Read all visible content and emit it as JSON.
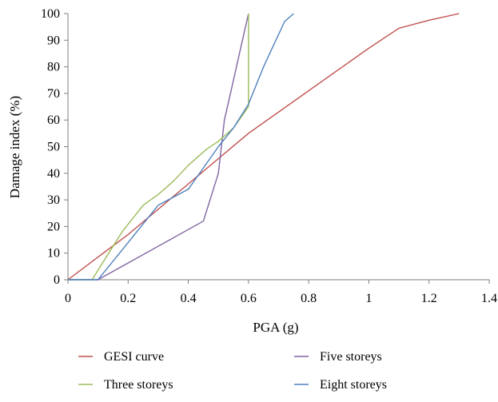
{
  "chart_data": {
    "type": "line",
    "title": "",
    "xlabel": "PGA (g)",
    "ylabel": "Damage index (%)",
    "xlim": [
      0,
      1.4
    ],
    "ylim": [
      0,
      100
    ],
    "xticks": [
      0,
      0.2,
      0.4,
      0.6,
      0.8,
      1,
      1.2,
      1.4
    ],
    "xtick_labels": [
      "0",
      "0.2",
      "0.4",
      "0.6",
      "0.8",
      "1",
      "1.2",
      "1.4"
    ],
    "yticks": [
      0,
      10,
      20,
      30,
      40,
      50,
      60,
      70,
      80,
      90,
      100
    ],
    "ytick_labels": [
      "0",
      "10",
      "20",
      "30",
      "40",
      "50",
      "60",
      "70",
      "80",
      "90",
      "100"
    ],
    "grid": false,
    "legend_position": "bottom",
    "series": [
      {
        "name": "GESI curve",
        "color": "#c0504d",
        "points": [
          [
            0,
            0
          ],
          [
            0.2,
            17
          ],
          [
            0.4,
            36
          ],
          [
            0.6,
            55
          ],
          [
            0.8,
            71
          ],
          [
            1.0,
            87
          ],
          [
            1.1,
            94.5
          ],
          [
            1.2,
            97.5
          ],
          [
            1.3,
            100
          ]
        ]
      },
      {
        "name": "Five storeys",
        "color": "#8064a2",
        "points": [
          [
            0,
            0
          ],
          [
            0.1,
            0
          ],
          [
            0.45,
            22
          ],
          [
            0.5,
            40
          ],
          [
            0.52,
            60
          ],
          [
            0.54,
            70
          ],
          [
            0.56,
            80
          ],
          [
            0.58,
            90
          ],
          [
            0.6,
            100
          ]
        ]
      },
      {
        "name": "Three storeys",
        "color": "#9bbb59",
        "points": [
          [
            0,
            0
          ],
          [
            0.08,
            0
          ],
          [
            0.18,
            18
          ],
          [
            0.25,
            28
          ],
          [
            0.3,
            32
          ],
          [
            0.35,
            37
          ],
          [
            0.4,
            43
          ],
          [
            0.46,
            49
          ],
          [
            0.5,
            52
          ],
          [
            0.55,
            57
          ],
          [
            0.6,
            65
          ],
          [
            0.6,
            100
          ]
        ]
      },
      {
        "name": "Eight storeys",
        "color": "#4f81bd",
        "points": [
          [
            0,
            0
          ],
          [
            0.1,
            0
          ],
          [
            0.2,
            14
          ],
          [
            0.3,
            28
          ],
          [
            0.4,
            34
          ],
          [
            0.45,
            42
          ],
          [
            0.5,
            50
          ],
          [
            0.55,
            57
          ],
          [
            0.6,
            66
          ],
          [
            0.65,
            80
          ],
          [
            0.72,
            97
          ],
          [
            0.75,
            100
          ]
        ]
      }
    ]
  }
}
